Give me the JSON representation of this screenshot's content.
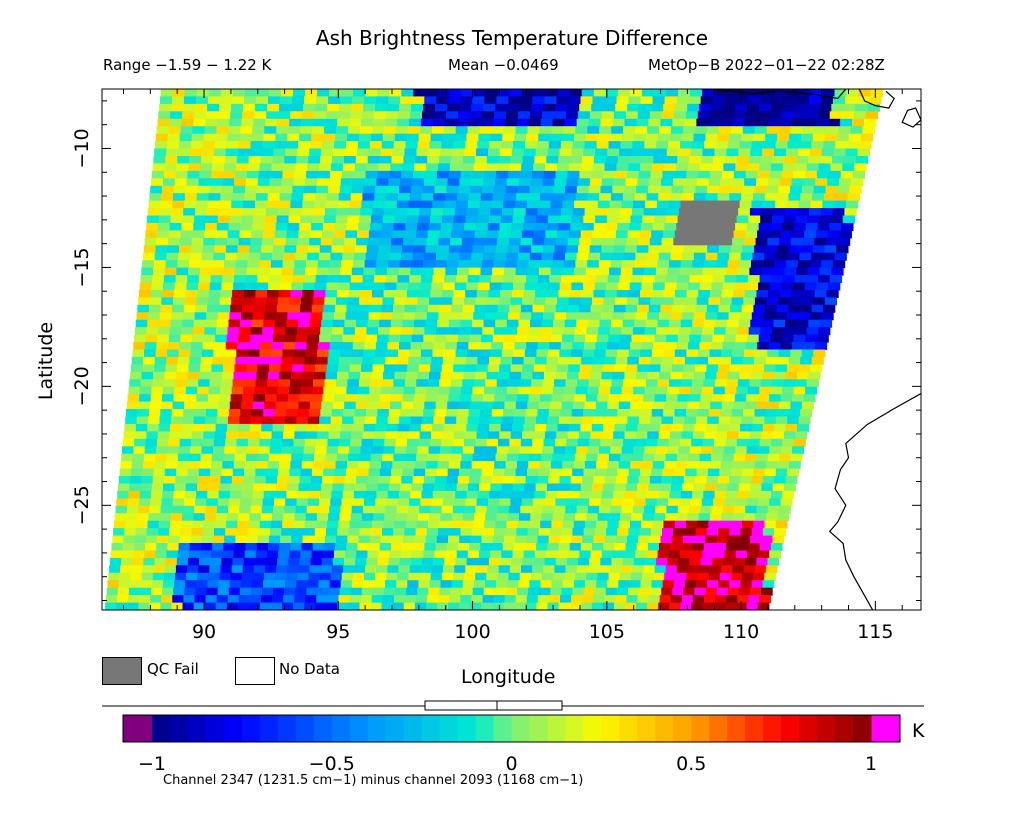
{
  "header": {
    "title": "Ash Brightness Temperature Difference",
    "range": "Range −1.59 − 1.22 K",
    "mean": "Mean −0.0469",
    "satellite": "MetOp−B 2022−01−22 02:28Z"
  },
  "legend": {
    "qc_fail": "QC Fail",
    "no_data": "No Data"
  },
  "colorbar": {
    "unit": "K",
    "ticks": [
      "−1",
      "−0.5",
      "0",
      "0.5",
      "1"
    ],
    "tick_values": [
      -1,
      -0.5,
      0,
      0.5,
      1
    ],
    "footnote": "Channel 2347 (1231.5 cm−1) minus channel 2093 (1168 cm−1)",
    "under_color": "#800080",
    "over_color": "#ff00ff"
  },
  "chart_data": {
    "type": "heatmap",
    "title": "Ash Brightness Temperature Difference",
    "xlabel": "Longitude",
    "ylabel": "Latitude",
    "xlim": [
      86.2,
      116.7
    ],
    "ylim": [
      -29.4,
      -7.5
    ],
    "xticks": [
      90,
      95,
      100,
      105,
      110,
      115
    ],
    "yticks": [
      -10,
      -15,
      -20,
      -25
    ],
    "xtick_labels": [
      "90",
      "95",
      "100",
      "105",
      "110",
      "115"
    ],
    "ytick_labels": [
      "−10",
      "−15",
      "−20",
      "−25"
    ],
    "value_range": [
      -1.59,
      1.22
    ],
    "mean": -0.0469,
    "color_scale": [
      -1,
      1
    ],
    "units": "K",
    "swath_corners": [
      [
        88.4,
        -7.5
      ],
      [
        115.3,
        -7.5
      ],
      [
        111.0,
        -29.4
      ],
      [
        86.3,
        -29.4
      ]
    ],
    "qc_fail_region": {
      "lon": [
        107.6,
        109.8
      ],
      "lat": [
        -14.2,
        -12.2
      ]
    },
    "features": [
      {
        "lon": [
          91.0,
          94.5
        ],
        "lat": [
          -21.5,
          -16.0
        ],
        "value": 0.85
      },
      {
        "lon": [
          107.0,
          111.0
        ],
        "lat": [
          -29.4,
          -25.5
        ],
        "value": 0.95
      },
      {
        "lon": [
          108.5,
          113.5
        ],
        "lat": [
          -9.0,
          -7.5
        ],
        "value": -0.95
      },
      {
        "lon": [
          110.5,
          114.0
        ],
        "lat": [
          -18.5,
          -12.5
        ],
        "value": -0.8
      },
      {
        "lon": [
          98.0,
          104.0
        ],
        "lat": [
          -9.0,
          -7.5
        ],
        "value": -0.85
      },
      {
        "lon": [
          89.0,
          95.0
        ],
        "lat": [
          -29.4,
          -26.5
        ],
        "value": -0.6
      },
      {
        "lon": [
          96.0,
          104.0
        ],
        "lat": [
          -15.0,
          -11.0
        ],
        "value": -0.3
      }
    ],
    "grid": false
  }
}
